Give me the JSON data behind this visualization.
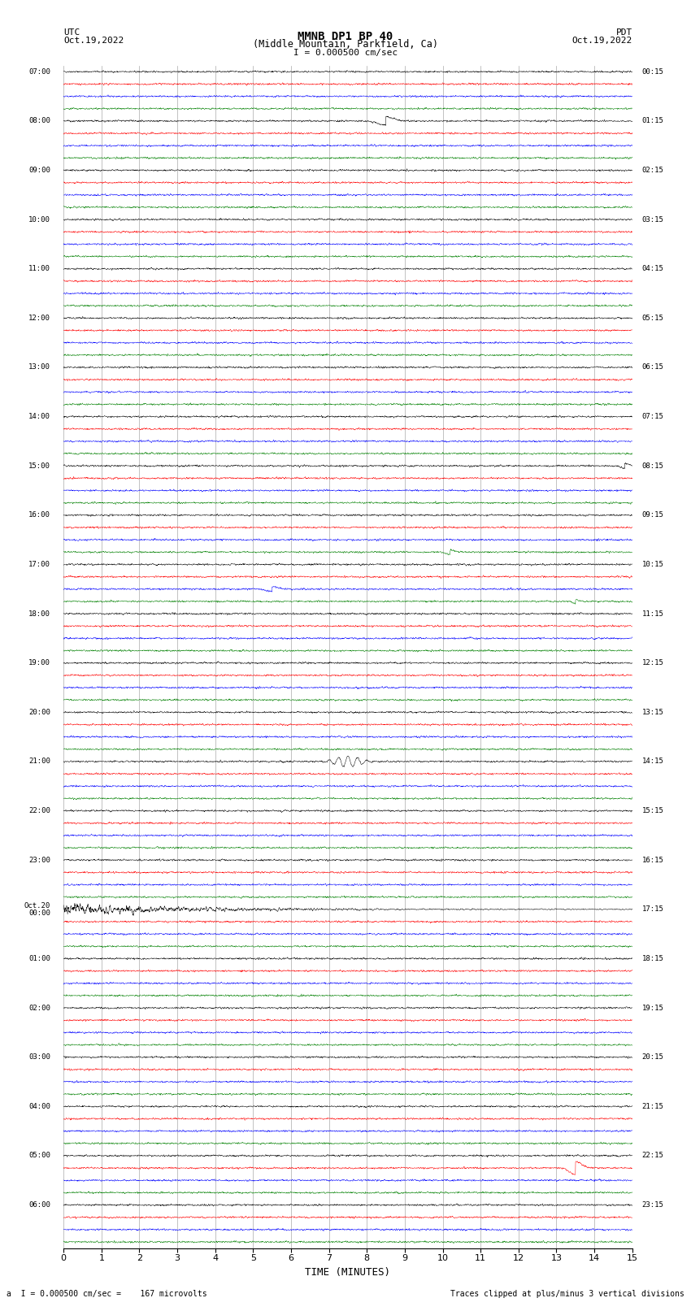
{
  "title_line1": "MMNB DP1 BP 40",
  "title_line2": "(Middle Mountain, Parkfield, Ca)",
  "scale_label": "I = 0.000500 cm/sec",
  "left_header_line1": "UTC",
  "left_header_line2": "Oct.19,2022",
  "right_header_line1": "PDT",
  "right_header_line2": "Oct.19,2022",
  "bottom_label1": "a  I = 0.000500 cm/sec =    167 microvolts",
  "bottom_label2": "Traces clipped at plus/minus 3 vertical divisions",
  "xlabel": "TIME (MINUTES)",
  "trace_colors_cycle": [
    "black",
    "red",
    "blue",
    "green"
  ],
  "background_color": "white",
  "left_times": [
    "07:00",
    "08:00",
    "09:00",
    "10:00",
    "11:00",
    "12:00",
    "13:00",
    "14:00",
    "15:00",
    "16:00",
    "17:00",
    "18:00",
    "19:00",
    "20:00",
    "21:00",
    "22:00",
    "23:00",
    "Oct.20\n00:00",
    "01:00",
    "02:00",
    "03:00",
    "04:00",
    "05:00",
    "06:00"
  ],
  "right_times": [
    "00:15",
    "01:15",
    "02:15",
    "03:15",
    "04:15",
    "05:15",
    "06:15",
    "07:15",
    "08:15",
    "09:15",
    "10:15",
    "11:15",
    "12:15",
    "13:15",
    "14:15",
    "15:15",
    "16:15",
    "17:15",
    "18:15",
    "19:15",
    "20:15",
    "21:15",
    "22:15",
    "23:15"
  ],
  "n_rows": 24,
  "n_traces_per_row": 4,
  "xmin": 0,
  "xmax": 15,
  "noise_seed": 42
}
